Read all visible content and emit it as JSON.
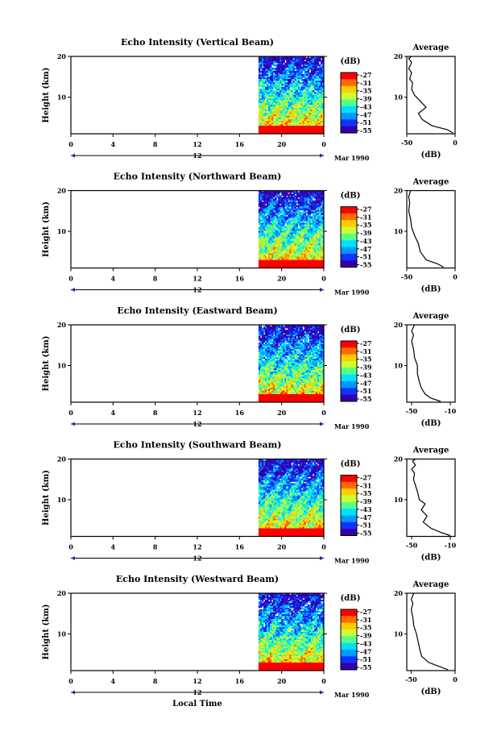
{
  "figure": {
    "x_axis_label": "Local Time",
    "month_label": "Mar 1990",
    "colorbar_unit": "(dB)",
    "colorbar_ticks": [
      "-27",
      "-31",
      "-35",
      "-39",
      "-43",
      "-47",
      "-51",
      "-55"
    ],
    "colorbar_colors": [
      "#ff0000",
      "#ff6a00",
      "#ffcc00",
      "#ccff33",
      "#55ff88",
      "#00e0ff",
      "#0099ff",
      "#1133ff",
      "#3300aa"
    ],
    "x_ticks": [
      "0",
      "4",
      "8",
      "12",
      "16",
      "20",
      "0"
    ],
    "x_marker_label": "12",
    "y_axis_label": "Height (km)",
    "y_ticks": [
      "20",
      "10"
    ],
    "average_title": "Average",
    "average_xlabel": "(dB)",
    "average_y_ticks": [
      "20",
      "10"
    ]
  },
  "chart_data": [
    {
      "type": "heatmap",
      "title": "Echo Intensity (Vertical Beam)",
      "xlabel": "",
      "ylabel": "Height (km)",
      "xlim": [
        0,
        24
      ],
      "ylim": [
        1,
        20
      ],
      "data_start_hour": 17.8,
      "average": {
        "type": "line",
        "title": "Average",
        "xlabel": "(dB)",
        "xlim": [
          -50,
          0
        ],
        "x_tick_labels": [
          "-50",
          "0"
        ],
        "x_tick_values": [
          -50,
          0
        ],
        "profile": [
          [
            -2,
            1.2
          ],
          [
            -8,
            2.0
          ],
          [
            -24,
            3.0
          ],
          [
            -34,
            4.5
          ],
          [
            -38,
            6.0
          ],
          [
            -30,
            7.5
          ],
          [
            -36,
            9.0
          ],
          [
            -42,
            10.5
          ],
          [
            -45,
            12.0
          ],
          [
            -44,
            13.5
          ],
          [
            -47,
            14.5
          ],
          [
            -45,
            16.0
          ],
          [
            -48,
            17.0
          ],
          [
            -45,
            18.5
          ],
          [
            -48,
            19.5
          ],
          [
            -45,
            20.0
          ]
        ]
      }
    },
    {
      "type": "heatmap",
      "title": "Echo Intensity (Northward Beam)",
      "xlabel": "",
      "ylabel": "Height (km)",
      "xlim": [
        0,
        24
      ],
      "ylim": [
        1,
        20
      ],
      "data_start_hour": 17.8,
      "average": {
        "type": "line",
        "title": "Average",
        "xlabel": "(dB)",
        "xlim": [
          -50,
          0
        ],
        "x_tick_labels": [
          "-50",
          "0"
        ],
        "x_tick_values": [
          -50,
          0
        ],
        "profile": [
          [
            -12,
            1.2
          ],
          [
            -18,
            2.0
          ],
          [
            -30,
            3.0
          ],
          [
            -36,
            5.0
          ],
          [
            -38,
            7.0
          ],
          [
            -42,
            9.0
          ],
          [
            -45,
            11.0
          ],
          [
            -46,
            13.0
          ],
          [
            -48,
            15.0
          ],
          [
            -47,
            17.0
          ],
          [
            -48,
            18.5
          ],
          [
            -46,
            20.0
          ]
        ]
      }
    },
    {
      "type": "heatmap",
      "title": "Echo Intensity (Eastward Beam)",
      "xlabel": "",
      "ylabel": "Height (km)",
      "xlim": [
        0,
        24
      ],
      "ylim": [
        1,
        20
      ],
      "data_start_hour": 17.8,
      "average": {
        "type": "line",
        "title": "Average",
        "xlabel": "(dB)",
        "xlim": [
          -55,
          -5
        ],
        "x_tick_labels": [
          "-50",
          "-10"
        ],
        "x_tick_values": [
          -50,
          -10
        ],
        "profile": [
          [
            -20,
            1.2
          ],
          [
            -30,
            2.0
          ],
          [
            -36,
            3.0
          ],
          [
            -40,
            4.5
          ],
          [
            -42,
            6.0
          ],
          [
            -44,
            8.0
          ],
          [
            -44,
            10.0
          ],
          [
            -47,
            12.0
          ],
          [
            -48,
            14.0
          ],
          [
            -50,
            16.0
          ],
          [
            -48,
            17.5
          ],
          [
            -50,
            18.5
          ],
          [
            -47,
            20.0
          ]
        ]
      }
    },
    {
      "type": "heatmap",
      "title": "Echo Intensity (Southward Beam)",
      "xlabel": "",
      "ylabel": "Height (km)",
      "xlim": [
        0,
        24
      ],
      "ylim": [
        1,
        20
      ],
      "data_start_hour": 17.8,
      "average": {
        "type": "line",
        "title": "Average",
        "xlabel": "(dB)",
        "xlim": [
          -55,
          -5
        ],
        "x_tick_labels": [
          "-50",
          "-10"
        ],
        "x_tick_values": [
          -50,
          -10
        ],
        "profile": [
          [
            -10,
            1.2
          ],
          [
            -20,
            2.0
          ],
          [
            -30,
            3.0
          ],
          [
            -38,
            4.5
          ],
          [
            -34,
            6.0
          ],
          [
            -40,
            7.5
          ],
          [
            -36,
            9.0
          ],
          [
            -42,
            10.0
          ],
          [
            -44,
            12.0
          ],
          [
            -46,
            13.5
          ],
          [
            -48,
            15.0
          ],
          [
            -47,
            16.5
          ],
          [
            -50,
            17.5
          ],
          [
            -46,
            18.5
          ],
          [
            -49,
            19.5
          ],
          [
            -46,
            20.0
          ]
        ]
      }
    },
    {
      "type": "heatmap",
      "title": "Echo Intensity (Westward Beam)",
      "xlabel": "Local Time",
      "ylabel": "Height (km)",
      "xlim": [
        0,
        24
      ],
      "ylim": [
        1,
        20
      ],
      "data_start_hour": 17.8,
      "average": {
        "type": "line",
        "title": "Average",
        "xlabel": "(dB)",
        "xlim": [
          -55,
          0
        ],
        "x_tick_labels": [
          "-50",
          "0"
        ],
        "x_tick_values": [
          -50,
          0
        ],
        "profile": [
          [
            -8,
            1.2
          ],
          [
            -18,
            2.0
          ],
          [
            -30,
            3.0
          ],
          [
            -38,
            4.5
          ],
          [
            -40,
            6.0
          ],
          [
            -42,
            8.0
          ],
          [
            -44,
            10.0
          ],
          [
            -47,
            12.0
          ],
          [
            -48,
            14.0
          ],
          [
            -50,
            16.0
          ],
          [
            -48,
            17.5
          ],
          [
            -50,
            18.5
          ],
          [
            -47,
            20.0
          ]
        ]
      }
    }
  ]
}
